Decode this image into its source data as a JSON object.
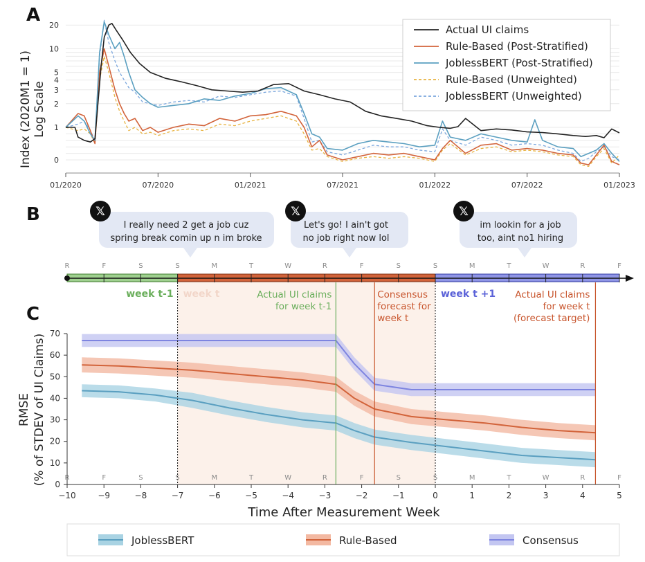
{
  "panels": {
    "a": "A",
    "b": "B",
    "c": "C"
  },
  "colors": {
    "actual": "#222222",
    "rule": "#d2633a",
    "jobless": "#5a9fc0",
    "rule_unw": "#e8b340",
    "jobless_unw": "#7aa6dd",
    "consensus": "#7d84e0",
    "week_prev": "#86c27a",
    "week_t": "#c8552d",
    "week_next": "#7d84e0"
  },
  "chart_data": [
    {
      "type": "line",
      "panel": "A",
      "ylabel": "Index (2020M1 = 1)",
      "ylabel2": "Log Scale",
      "ytick_labels": [
        "0",
        "1",
        "2",
        "3",
        "4",
        "5",
        "10",
        "20"
      ],
      "xtick_labels": [
        "01/2020",
        "07/2020",
        "01/2021",
        "07/2021",
        "01/2022",
        "07/2022",
        "01/2023"
      ],
      "legend": [
        "Actual UI claims",
        "Rule-Based (Post-Stratified)",
        "JoblessBERT (Post-Stratified)",
        "Rule-Based (Unweighted)",
        "JoblessBERT (Unweighted)"
      ],
      "legend_position": "top-right",
      "x_range": [
        0,
        36
      ],
      "series": [
        {
          "name": "Actual UI claims",
          "style": "solid",
          "x": [
            0,
            0.6,
            0.8,
            1.2,
            1.6,
            1.9,
            2.3,
            2.5,
            2.8,
            3.0,
            3.3,
            3.7,
            4.2,
            4.8,
            5.5,
            6.5,
            7.5,
            8.5,
            9.5,
            10.5,
            11.5,
            12.5,
            13.5,
            14.5,
            15.5,
            16.5,
            17.5,
            18.5,
            19.5,
            20.5,
            21.5,
            22.5,
            23.5,
            24.3,
            25,
            25.5,
            26,
            27,
            28,
            29,
            30,
            31,
            32,
            33,
            33.8,
            34.5,
            35,
            35.5,
            36
          ],
          "y": [
            1,
            1,
            0.7,
            0.6,
            0.55,
            0.65,
            6,
            14,
            20,
            21,
            17,
            13,
            9,
            6.5,
            5,
            4.2,
            3.8,
            3.4,
            3.0,
            2.9,
            2.8,
            2.9,
            3.5,
            3.6,
            2.9,
            2.6,
            2.3,
            2.1,
            1.6,
            1.4,
            1.3,
            1.2,
            1.05,
            1.0,
            0.97,
            1.02,
            1.3,
            0.9,
            0.95,
            0.92,
            0.86,
            0.84,
            0.8,
            0.75,
            0.72,
            0.75,
            0.68,
            0.95,
            0.83
          ]
        },
        {
          "name": "Rule-Based (Post-Stratified)",
          "style": "solid",
          "x": [
            0,
            0.8,
            1.2,
            1.6,
            1.9,
            2.2,
            2.5,
            2.8,
            3.2,
            3.5,
            3.8,
            4.1,
            4.5,
            5.0,
            5.5,
            6.0,
            7,
            8,
            9,
            10,
            11,
            12,
            13,
            14,
            15,
            15.5,
            16,
            16.5,
            17,
            18,
            19,
            20,
            21,
            22,
            23,
            24,
            24.5,
            25,
            26,
            27,
            28,
            29,
            30,
            31,
            32,
            33,
            33.5,
            34,
            34.5,
            35,
            35.5,
            36
          ],
          "y": [
            1,
            1.5,
            1.4,
            0.9,
            0.5,
            5,
            10,
            6,
            3,
            2,
            1.5,
            1.2,
            1.3,
            0.9,
            1.0,
            0.85,
            1.0,
            1.1,
            1.05,
            1.3,
            1.2,
            1.4,
            1.45,
            1.6,
            1.4,
            1.0,
            0.4,
            0.6,
            0.15,
            0.0,
            0.1,
            0.2,
            0.15,
            0.2,
            0.1,
            0.0,
            0.35,
            0.6,
            0.2,
            0.45,
            0.5,
            0.3,
            0.35,
            0.3,
            0.2,
            0.15,
            -0.1,
            -0.15,
            0.15,
            0.45,
            -0.05,
            -0.15
          ]
        },
        {
          "name": "JoblessBERT (Post-Stratified)",
          "style": "solid",
          "x": [
            0,
            0.8,
            1.2,
            1.6,
            1.9,
            2.2,
            2.5,
            2.8,
            3.2,
            3.5,
            3.8,
            4.1,
            4.5,
            5.0,
            5.5,
            6.0,
            7,
            8,
            9,
            10,
            11,
            12,
            13,
            14,
            15,
            15.5,
            16,
            16.5,
            17,
            18,
            19,
            20,
            21,
            22,
            23,
            24,
            24.5,
            25,
            26,
            27,
            28,
            29,
            30,
            30.5,
            31,
            32,
            33,
            33.5,
            34,
            34.5,
            35,
            35.5,
            36
          ],
          "y": [
            1,
            1.4,
            1.2,
            0.8,
            0.6,
            9,
            22,
            15,
            10,
            12,
            8,
            5,
            3.0,
            2.4,
            2.0,
            1.8,
            1.9,
            2.0,
            2.3,
            2.2,
            2.5,
            2.7,
            3.1,
            3.2,
            2.6,
            1.5,
            0.8,
            0.7,
            0.35,
            0.3,
            0.5,
            0.6,
            0.55,
            0.5,
            0.4,
            0.45,
            1.2,
            0.7,
            0.6,
            0.8,
            0.7,
            0.6,
            0.55,
            1.25,
            0.6,
            0.4,
            0.35,
            0.1,
            0.2,
            0.3,
            0.5,
            0.2,
            -0.05
          ]
        },
        {
          "name": "Rule-Based (Unweighted)",
          "style": "dashed",
          "x": [
            0,
            0.8,
            1.2,
            1.6,
            1.9,
            2.2,
            2.5,
            2.8,
            3.2,
            3.5,
            3.8,
            4.1,
            4.5,
            5.0,
            5.5,
            6.0,
            7,
            8,
            9,
            10,
            11,
            12,
            13,
            14,
            15,
            15.5,
            16,
            16.5,
            17,
            18,
            19,
            20,
            21,
            22,
            23,
            24,
            24.5,
            25,
            26,
            27,
            28,
            29,
            30,
            31,
            32,
            33,
            33.5,
            34,
            34.5,
            35,
            35.5,
            36
          ],
          "y": [
            1,
            0.9,
            0.95,
            0.8,
            0.5,
            4,
            8,
            5,
            2.4,
            1.6,
            1.2,
            0.9,
            1.0,
            0.8,
            0.85,
            0.75,
            0.9,
            0.95,
            0.9,
            1.1,
            1.05,
            1.2,
            1.3,
            1.4,
            1.2,
            0.8,
            0.3,
            0.35,
            0.1,
            -0.05,
            0.05,
            0.1,
            0.05,
            0.1,
            0.05,
            -0.05,
            0.3,
            0.5,
            0.15,
            0.35,
            0.4,
            0.25,
            0.3,
            0.25,
            0.15,
            0.1,
            -0.15,
            -0.2,
            0.1,
            0.35,
            -0.1,
            0.15
          ]
        },
        {
          "name": "JoblessBERT (Unweighted)",
          "style": "dashed",
          "x": [
            0,
            0.8,
            1.2,
            1.6,
            1.9,
            2.2,
            2.5,
            2.8,
            3.2,
            3.5,
            3.8,
            4.1,
            4.5,
            5.0,
            5.5,
            6.0,
            7,
            8,
            9,
            10,
            11,
            12,
            13,
            14,
            15,
            15.5,
            16,
            16.5,
            17,
            18,
            19,
            20,
            21,
            22,
            23,
            24,
            24.5,
            25,
            26,
            27,
            28,
            29,
            30,
            31,
            32,
            33,
            33.5,
            34,
            34.5,
            35,
            35.5,
            36
          ],
          "y": [
            1,
            1.1,
            1.2,
            0.9,
            0.6,
            8,
            23,
            12,
            7,
            5,
            4,
            3.2,
            2.8,
            2.1,
            2.0,
            1.9,
            2.1,
            2.2,
            2.1,
            2.5,
            2.4,
            2.6,
            2.8,
            2.9,
            2.5,
            1.3,
            0.55,
            0.6,
            0.25,
            0.15,
            0.3,
            0.45,
            0.4,
            0.4,
            0.3,
            0.25,
            0.95,
            0.6,
            0.45,
            0.7,
            0.6,
            0.45,
            0.5,
            0.45,
            0.3,
            0.2,
            -0.05,
            0.05,
            0.25,
            0.4,
            0.1,
            0.0
          ]
        }
      ]
    },
    {
      "type": "line",
      "panel": "C",
      "ylabel": "RMSE",
      "ylabel2": "(% of STDEV of UI Claims)",
      "xlabel": "Time After Measurement Week",
      "xlim": [
        -10,
        5
      ],
      "ylim": [
        0,
        70
      ],
      "xtick_labels": [
        "−10",
        "−9",
        "−8",
        "−7",
        "−6",
        "−5",
        "−4",
        "−3",
        "−2",
        "−1",
        "0",
        "1",
        "2",
        "3",
        "4",
        "5"
      ],
      "ytick_labels": [
        "0",
        "10",
        "20",
        "30",
        "40",
        "50",
        "60",
        "70"
      ],
      "legend": [
        "JoblessBERT",
        "Rule-Based",
        "Consensus"
      ],
      "legend_position": "bottom",
      "series": [
        {
          "name": "JoblessBERT",
          "x": [
            -9.6,
            -8.6,
            -7.6,
            -6.6,
            -5.6,
            -4.6,
            -3.6,
            -2.7,
            -2.2,
            -1.65,
            -0.65,
            0.35,
            1.35,
            2.35,
            3.35,
            4.35
          ],
          "y": [
            43.5,
            43,
            41.5,
            39,
            35.5,
            32.5,
            30,
            28.5,
            25,
            22,
            19.5,
            17.5,
            15.5,
            13.5,
            12.5,
            11.5
          ],
          "band": [
            3,
            3,
            3,
            3.5,
            3.5,
            3.5,
            3.5,
            3.5,
            3.5,
            3.5,
            3.5,
            3.5,
            3.5,
            3.5,
            3.5,
            3.5
          ]
        },
        {
          "name": "Rule-Based",
          "x": [
            -9.6,
            -8.6,
            -7.6,
            -6.6,
            -5.6,
            -4.6,
            -3.6,
            -2.7,
            -2.2,
            -1.65,
            -0.65,
            0.35,
            1.35,
            2.35,
            3.35,
            4.35
          ],
          "y": [
            55.5,
            55,
            54,
            53,
            51.5,
            50,
            48.5,
            46.5,
            40,
            35,
            31.5,
            30,
            28.5,
            26.5,
            25,
            24
          ],
          "band": [
            3.5,
            3.5,
            3.5,
            3.5,
            3.5,
            3.5,
            3.5,
            3.5,
            3.5,
            3.5,
            3.5,
            3.5,
            3.5,
            3.5,
            3.5,
            3.5
          ]
        },
        {
          "name": "Consensus",
          "x": [
            -9.6,
            -8.6,
            -7.6,
            -6.6,
            -5.6,
            -4.6,
            -3.6,
            -2.7,
            -2.2,
            -1.65,
            -0.65,
            0.35,
            1.35,
            2.35,
            3.35,
            4.35
          ],
          "y": [
            66.8,
            66.8,
            66.8,
            66.8,
            66.8,
            66.8,
            66.8,
            66.8,
            56,
            46.5,
            44,
            44,
            44,
            44,
            44,
            44
          ],
          "band": [
            3,
            3,
            3,
            3,
            3,
            3,
            3,
            3,
            3,
            3,
            3,
            3,
            3,
            3,
            3,
            3
          ]
        }
      ]
    }
  ],
  "timeline": {
    "days": [
      "R",
      "F",
      "S",
      "S",
      "M",
      "T",
      "W",
      "R",
      "F",
      "S",
      "S",
      "M",
      "T",
      "W",
      "R",
      "F"
    ],
    "weeks": [
      "week t-1",
      "week t",
      "week t +1"
    ],
    "vlines": [
      {
        "x": -2.7,
        "label1": "Actual UI claims",
        "label2": "for week t-1",
        "color": "#86c27a"
      },
      {
        "x": -1.65,
        "label1": "Consensus",
        "label2": "forecast for",
        "label3": "week t",
        "color": "#c8552d"
      },
      {
        "x": 4.35,
        "label1": "Actual UI claims",
        "label2": "for week t",
        "label3": "(forecast target)",
        "color": "#c8552d"
      }
    ],
    "tweets": [
      {
        "line1": "I really need 2 get a job cuz",
        "line2": "spring break comin up n im broke"
      },
      {
        "line1": "Let's go! I ain't got",
        "line2": "no job right now lol"
      },
      {
        "line1": "im lookin for a job",
        "line2": "too, aint no1 hiring"
      }
    ],
    "tweet_icon": "x-logo-icon"
  }
}
